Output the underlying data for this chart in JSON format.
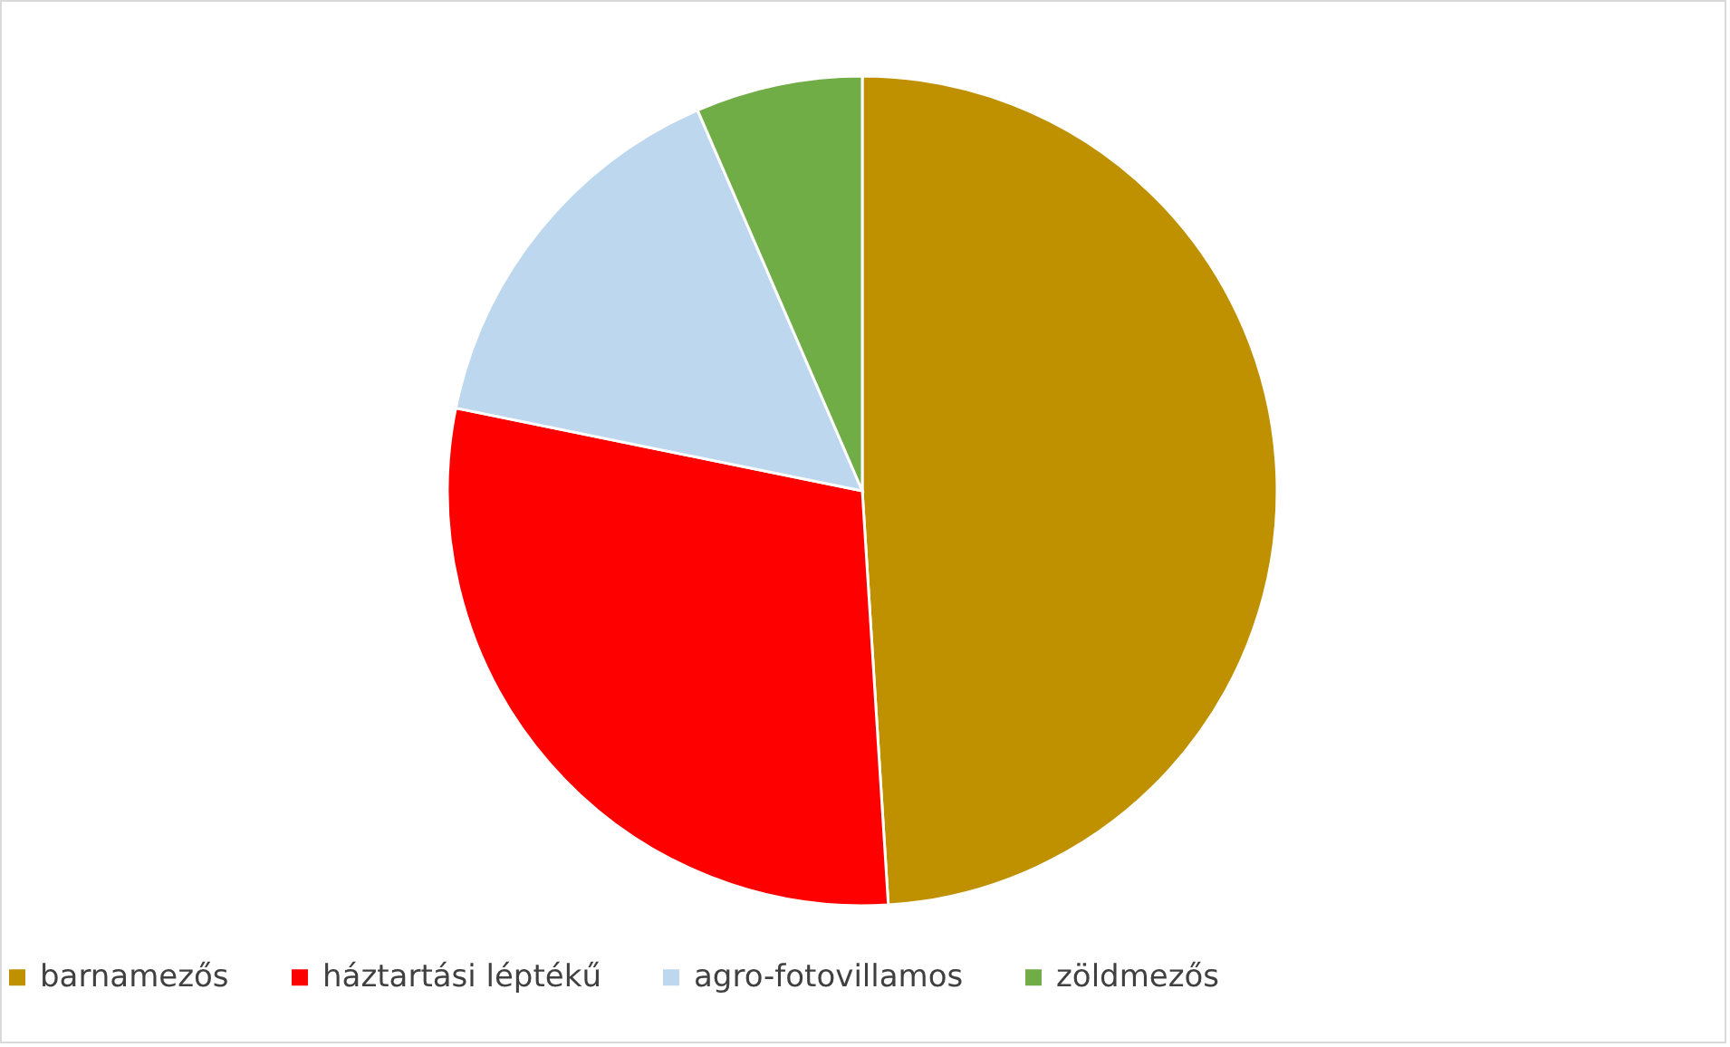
{
  "chart_data": {
    "type": "pie",
    "categories": [
      "barnamezős",
      "háztartási léptékű",
      "agro-fotovillamos",
      "zöldmezős"
    ],
    "values": [
      49,
      29.2,
      15.3,
      6.5
    ],
    "colors": [
      "#bf9000",
      "#ff0000",
      "#bdd7ee",
      "#70ad47"
    ],
    "legend": "bottom"
  }
}
